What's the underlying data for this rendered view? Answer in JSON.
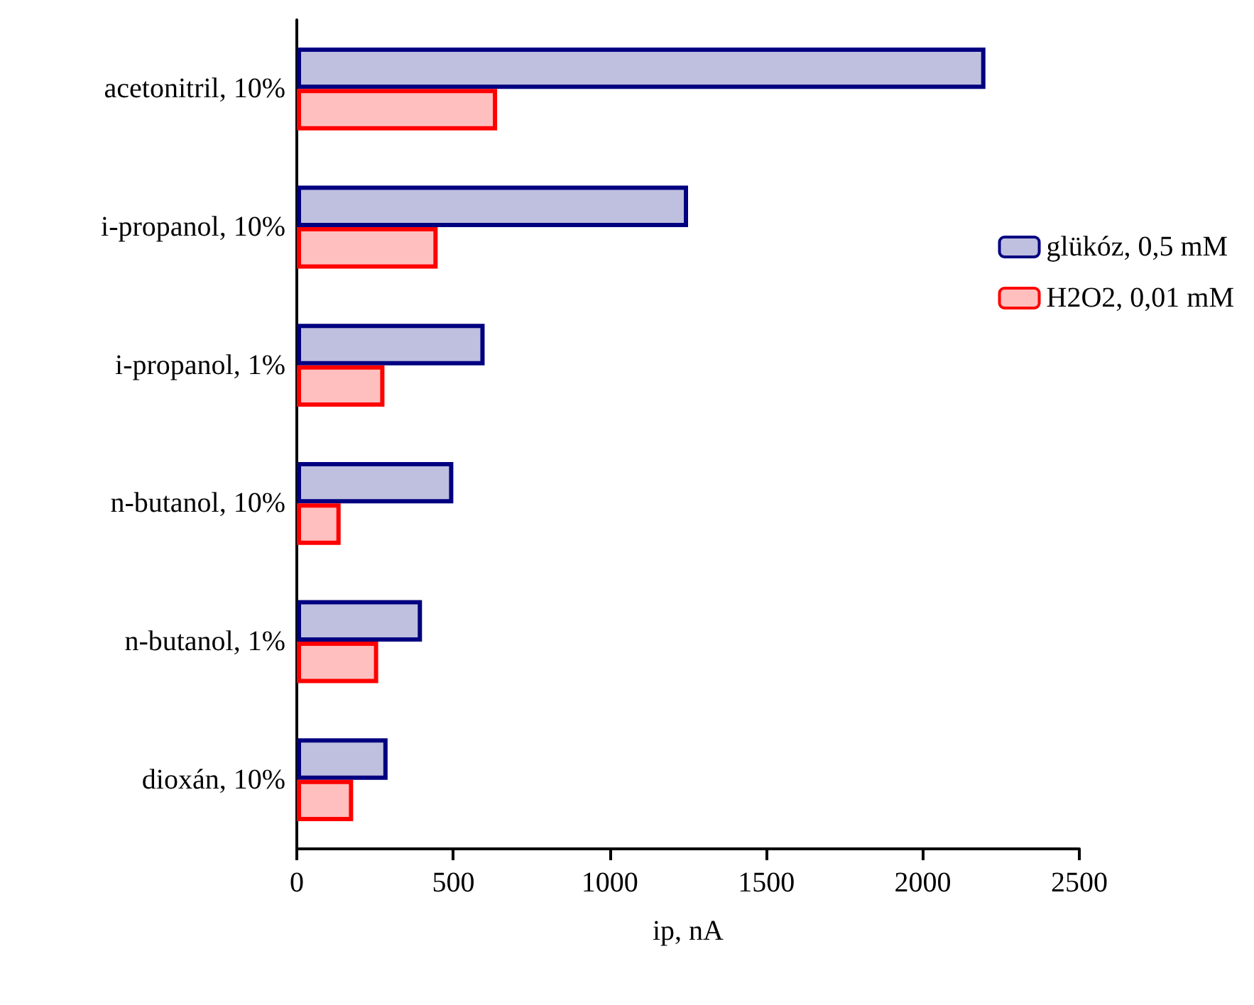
{
  "chart_data": {
    "type": "bar",
    "orientation": "horizontal",
    "xlabel": "ip, nA",
    "categories": [
      "acetonitril, 10%",
      "i-propanol, 10%",
      "i-propanol, 1%",
      "n-butanol, 10%",
      "n-butanol, 1%",
      "dioxán, 10%"
    ],
    "series": [
      {
        "name": "glükóz, 0,5 mM",
        "color": "#000080",
        "values": [
          2200,
          1250,
          600,
          500,
          400,
          290
        ]
      },
      {
        "name": "H2O2, 0,01 mM",
        "color": "#ff0000",
        "values": [
          640,
          450,
          280,
          140,
          260,
          180
        ]
      }
    ],
    "xlim": [
      0,
      2500
    ],
    "xticks": [
      0,
      500,
      1000,
      1500,
      2000,
      2500
    ],
    "grid": false,
    "legend": "right"
  }
}
